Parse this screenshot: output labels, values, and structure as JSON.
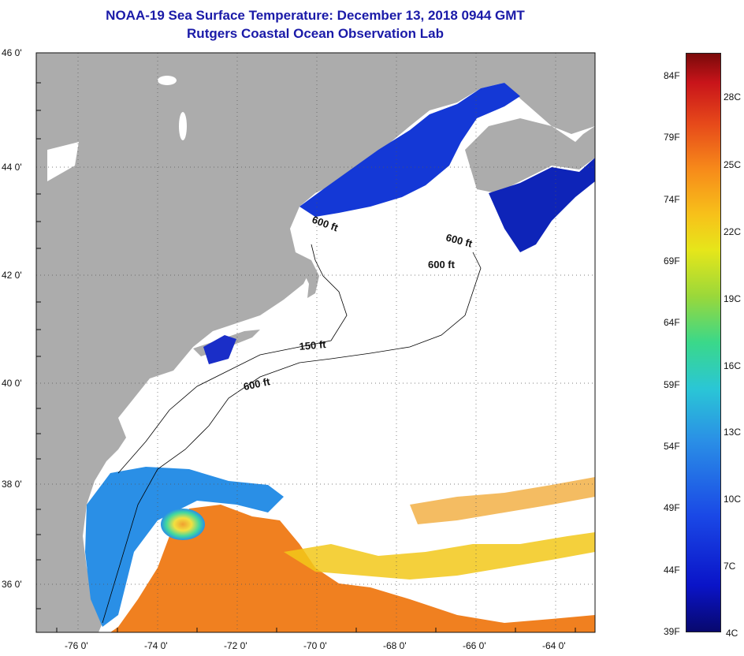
{
  "header": {
    "title": "NOAA-19 Sea Surface Temperature:  December 13, 2018 0944 GMT",
    "subtitle": "Rutgers Coastal Ocean Observation Lab"
  },
  "map": {
    "lat_labels": [
      "46 0'",
      "44 0'",
      "42 0'",
      "40 0'",
      "38 0'",
      "36 0'"
    ],
    "lon_labels": [
      "-76 0'",
      "-74 0'",
      "-72 0'",
      "-70 0'",
      "-68 0'",
      "-66 0'",
      "-64 0'"
    ],
    "lat_range": [
      35,
      46
    ],
    "lon_range": [
      -77,
      -63
    ],
    "contour_labels": [
      "600 ft",
      "600 ft",
      "600 ft",
      "150 ft",
      "600 ft"
    ],
    "colors": {
      "land": "#acacac",
      "cloud": "#ffffff",
      "cold": "#1030d0",
      "warm": "#f08020"
    }
  },
  "colorbar": {
    "fahrenheit": [
      "84F",
      "79F",
      "74F",
      "69F",
      "64F",
      "59F",
      "54F",
      "49F",
      "44F",
      "39F"
    ],
    "celsius": [
      "28C",
      "25C",
      "22C",
      "19C",
      "16C",
      "13C",
      "10C",
      "7C",
      "4C"
    ]
  }
}
